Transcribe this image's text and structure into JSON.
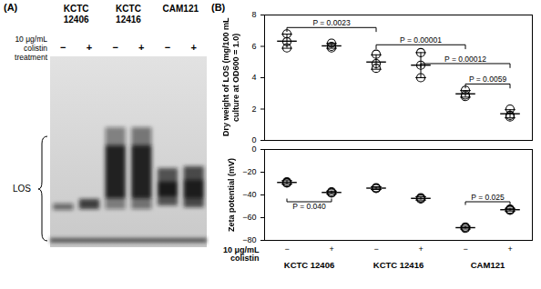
{
  "panel_a": {
    "label": "(A)",
    "treatment_label": "10 μg/mL colistin treatment",
    "groups": [
      "KCTC 12406",
      "KCTC 12416",
      "CAM121"
    ],
    "treatments": [
      "−",
      "+"
    ],
    "band_label": "LOS"
  },
  "panel_b_label": "(B)",
  "chart_data": [
    {
      "type": "scatter",
      "y_label": "Dry weight of LOS (mg/100 mL culture at OD600 = 1.0)",
      "categories": [
        "−",
        "+",
        "−",
        "+",
        "−",
        "+"
      ],
      "values": [
        [
          6.8,
          6.3,
          5.9
        ],
        [
          6.2,
          6.0,
          5.9
        ],
        [
          5.5,
          4.9,
          4.6
        ],
        [
          5.6,
          4.8,
          4.0
        ],
        [
          3.2,
          2.9,
          2.8
        ],
        [
          2.0,
          1.6,
          1.5
        ]
      ],
      "mean": [
        6.33,
        6.03,
        5.0,
        4.8,
        2.97,
        1.7
      ],
      "error": [
        0.45,
        0.15,
        0.46,
        0.8,
        0.21,
        0.26
      ],
      "ylim": [
        0,
        8
      ],
      "yticks": [
        0,
        2,
        4,
        6,
        8
      ],
      "tick_labels": "y",
      "marker": "circle",
      "color": "#000000",
      "annotations": [
        {
          "text": "P = 0.0023",
          "from": [
            0
          ],
          "to": [
            2
          ],
          "y": 7.2
        },
        {
          "text": "P = 0.00001",
          "from": [
            2
          ],
          "to": [
            4
          ],
          "y": 6.1
        },
        {
          "text": "P = 0.00012",
          "from": [
            3
          ],
          "to": [
            5
          ],
          "y": 4.9
        },
        {
          "text": "P = 0.0059",
          "from": [
            4
          ],
          "to": [
            5
          ],
          "y": 3.6
        }
      ]
    },
    {
      "type": "scatter",
      "y_label": "Zeta potential (mV)",
      "x_label": "10 μg/mL colistin",
      "categories": [
        "−",
        "+",
        "−",
        "+",
        "−",
        "+"
      ],
      "groups": [
        "KCTC 12406",
        "KCTC 12416",
        "CAM121"
      ],
      "values": [
        [
          -28.5,
          -29,
          -29.5
        ],
        [
          -37.2,
          -37.8,
          -38.4
        ],
        [
          -33.6,
          -34,
          -34.4
        ],
        [
          -42.4,
          -43,
          -43.6
        ],
        [
          -68.2,
          -68.8,
          -69.4
        ],
        [
          -52.5,
          -53,
          -53.5
        ]
      ],
      "mean": [
        -29,
        -37.8,
        -34,
        -43,
        -68.8,
        -53
      ],
      "error": [
        1.5,
        1.2,
        1.2,
        1.5,
        1.2,
        1.2
      ],
      "ylim": [
        -80,
        0
      ],
      "yticks": [
        -80,
        -60,
        -40,
        -20,
        0
      ],
      "tick_labels": true,
      "marker": "circle",
      "color": "#000000",
      "annotations": [
        {
          "text": "P = 0.040",
          "from": [
            0
          ],
          "to": [
            1
          ],
          "y": -46
        },
        {
          "text": "P = 0.025",
          "from": [
            4
          ],
          "to": [
            5
          ],
          "y": -46
        }
      ]
    }
  ]
}
